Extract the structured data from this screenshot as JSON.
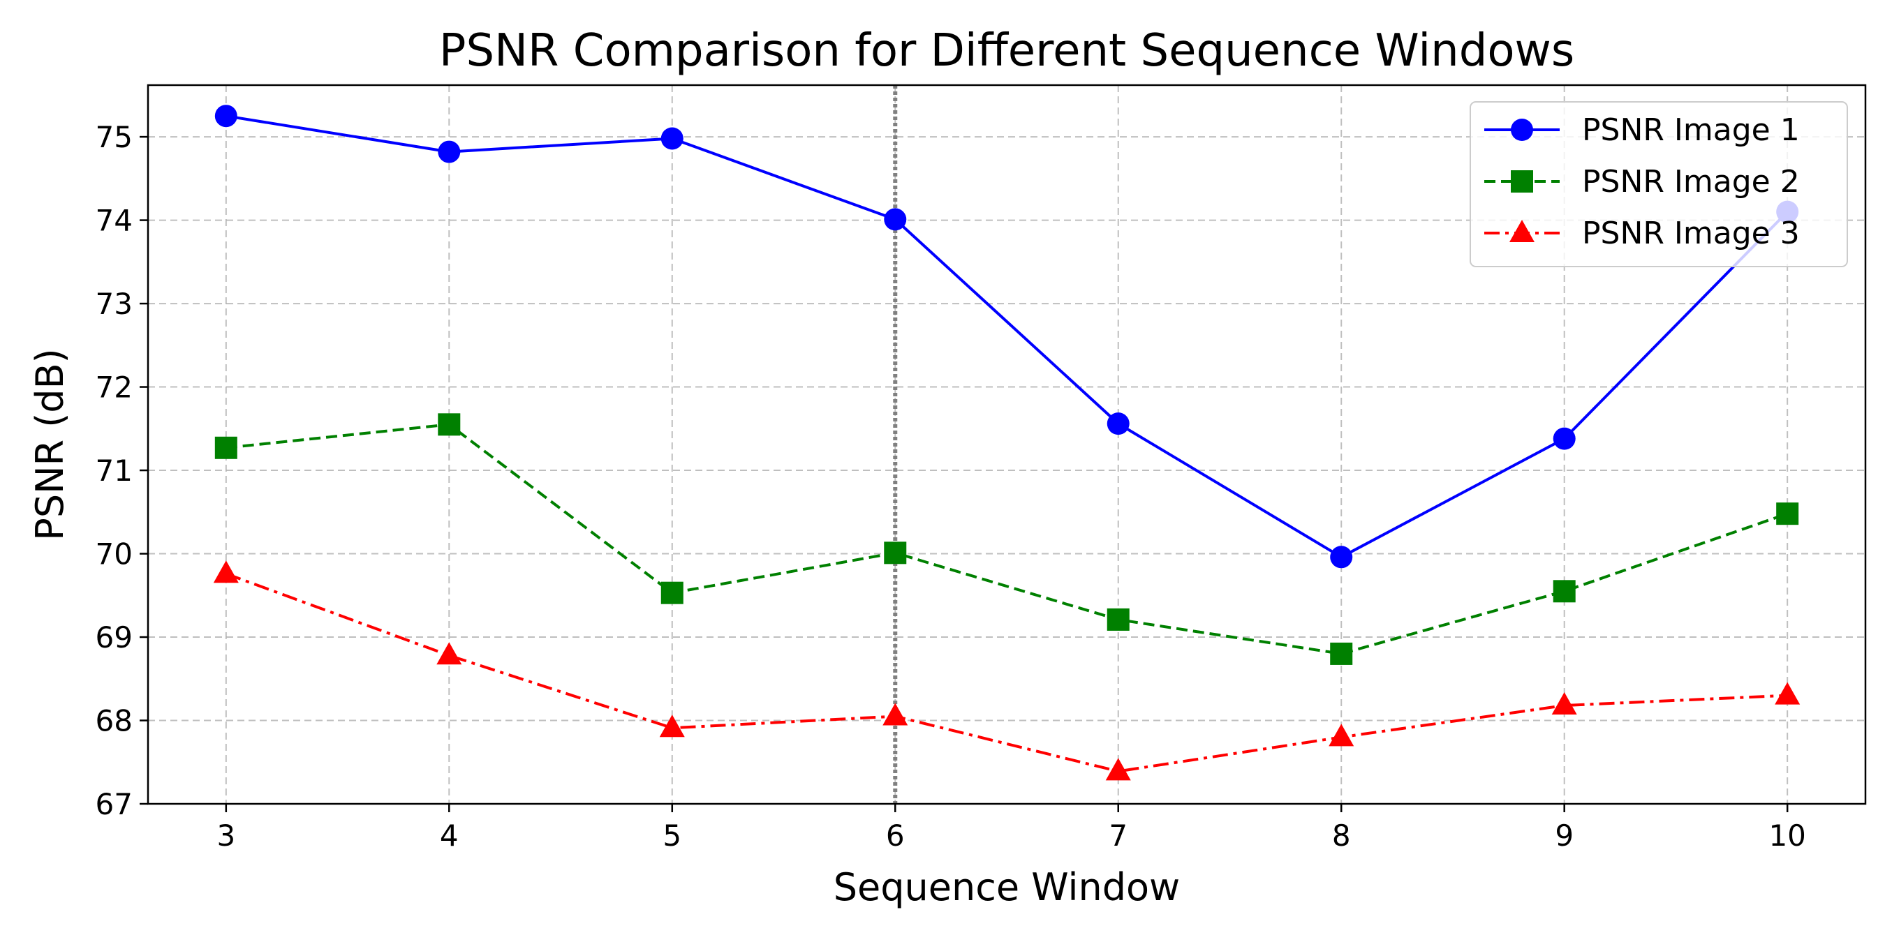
{
  "chart_data": {
    "type": "line",
    "title": "PSNR Comparison for Different Sequence Windows",
    "xlabel": "Sequence Window",
    "ylabel": "PSNR (dB)",
    "x": [
      3,
      4,
      5,
      6,
      7,
      8,
      9,
      10
    ],
    "xlim": [
      2.65,
      10.35
    ],
    "ylim": [
      67.0,
      75.62
    ],
    "xticks": [
      3,
      4,
      5,
      6,
      7,
      8,
      9,
      10
    ],
    "yticks": [
      67,
      68,
      69,
      70,
      71,
      72,
      73,
      74,
      75
    ],
    "grid": true,
    "legend_position": "top-right",
    "reference_line_x": 6,
    "reference_line_color": "#808080",
    "series": [
      {
        "name": "PSNR Image 1",
        "values": [
          75.25,
          74.82,
          74.98,
          74.01,
          71.56,
          69.96,
          71.38,
          74.1
        ],
        "color": "#0000ff",
        "linestyle": "solid",
        "marker": "circle"
      },
      {
        "name": "PSNR Image 2",
        "values": [
          71.27,
          71.55,
          69.53,
          70.01,
          69.21,
          68.8,
          69.55,
          70.48
        ],
        "color": "#008000",
        "linestyle": "dashed",
        "marker": "square"
      },
      {
        "name": "PSNR Image 3",
        "values": [
          69.76,
          68.78,
          67.91,
          68.05,
          67.39,
          67.8,
          68.18,
          68.3
        ],
        "color": "#ff0000",
        "linestyle": "dashdot",
        "marker": "triangle"
      }
    ]
  }
}
